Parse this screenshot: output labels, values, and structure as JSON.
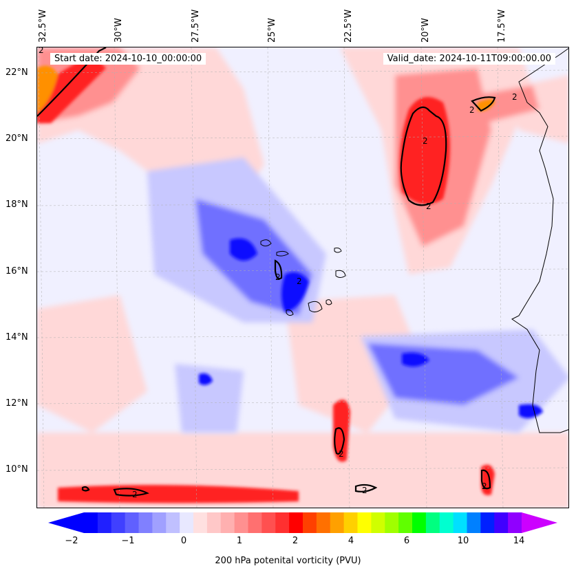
{
  "header": {
    "start_date": "Start date: 2024-10-10_00:00:00",
    "valid_date": "Valid_date: 2024-10-11T09:00:00.00"
  },
  "longitude_labels": [
    "32.5°W",
    "30°W",
    "27.5°W",
    "25°W",
    "22.5°W",
    "20°W",
    "17.5°W"
  ],
  "latitude_labels": [
    "22°N",
    "20°N",
    "18°N",
    "16°N",
    "14°N",
    "12°N",
    "10°N"
  ],
  "colorbar": {
    "label": "200 hPa potenital vorticity (PVU)",
    "tick_labels": [
      "−2",
      "−1",
      "0",
      "1",
      "2",
      "4",
      "6",
      "10",
      "14"
    ],
    "colors": [
      "#0000ff",
      "#2020ff",
      "#4040ff",
      "#6060ff",
      "#8080ff",
      "#a0a0ff",
      "#c0c0ff",
      "#e8e8ff",
      "#ffe0e0",
      "#ffc8c8",
      "#ffb0b0",
      "#ff9090",
      "#ff7070",
      "#ff5050",
      "#ff3030",
      "#ff0000",
      "#ff4000",
      "#ff7000",
      "#ffa000",
      "#ffd000",
      "#ffff00",
      "#d0ff00",
      "#a0ff00",
      "#60ff00",
      "#00ff00",
      "#00ff80",
      "#00ffd0",
      "#00e0ff",
      "#0080ff",
      "#0020ff",
      "#4000ff",
      "#9000ff"
    ],
    "extend_low_color": "#0000ff",
    "extend_high_color": "#cc00ff"
  },
  "contour_label": "2",
  "field_colors": {
    "background": "#f0f0ff",
    "light_red": "#ffd8d8",
    "mid_red": "#ff9090",
    "strong_red": "#ff2020",
    "light_blue": "#c8c8ff",
    "mid_blue": "#7070ff",
    "strong_blue": "#1010ff",
    "orange": "#ff9000",
    "coastline": "#000000",
    "gridline": "#b0b0b0"
  }
}
